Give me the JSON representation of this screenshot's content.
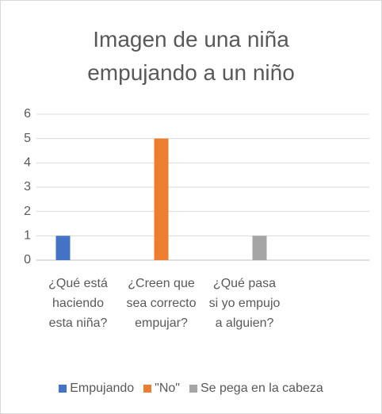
{
  "chart_data": {
    "type": "bar",
    "title": "Imagen de una niña empujando a un niño",
    "categories": [
      "¿Qué está haciendo esta niña?",
      "¿Creen que sea correcto empujar?",
      "¿Qué pasa si yo empujo a alguien?",
      null
    ],
    "series": [
      {
        "name": "Empujando",
        "color": "#4472c4",
        "values": [
          1,
          0,
          0,
          null
        ]
      },
      {
        "name": "\"No\"",
        "color": "#ed7d31",
        "values": [
          0,
          5,
          0,
          null
        ]
      },
      {
        "name": "Se pega en la cabeza",
        "color": "#a5a5a5",
        "values": [
          0,
          0,
          1,
          null
        ]
      }
    ],
    "ylim": [
      0,
      6
    ],
    "yticks": [
      0,
      1,
      2,
      3,
      4,
      5,
      6
    ],
    "grid": true,
    "legend": "bottom"
  }
}
